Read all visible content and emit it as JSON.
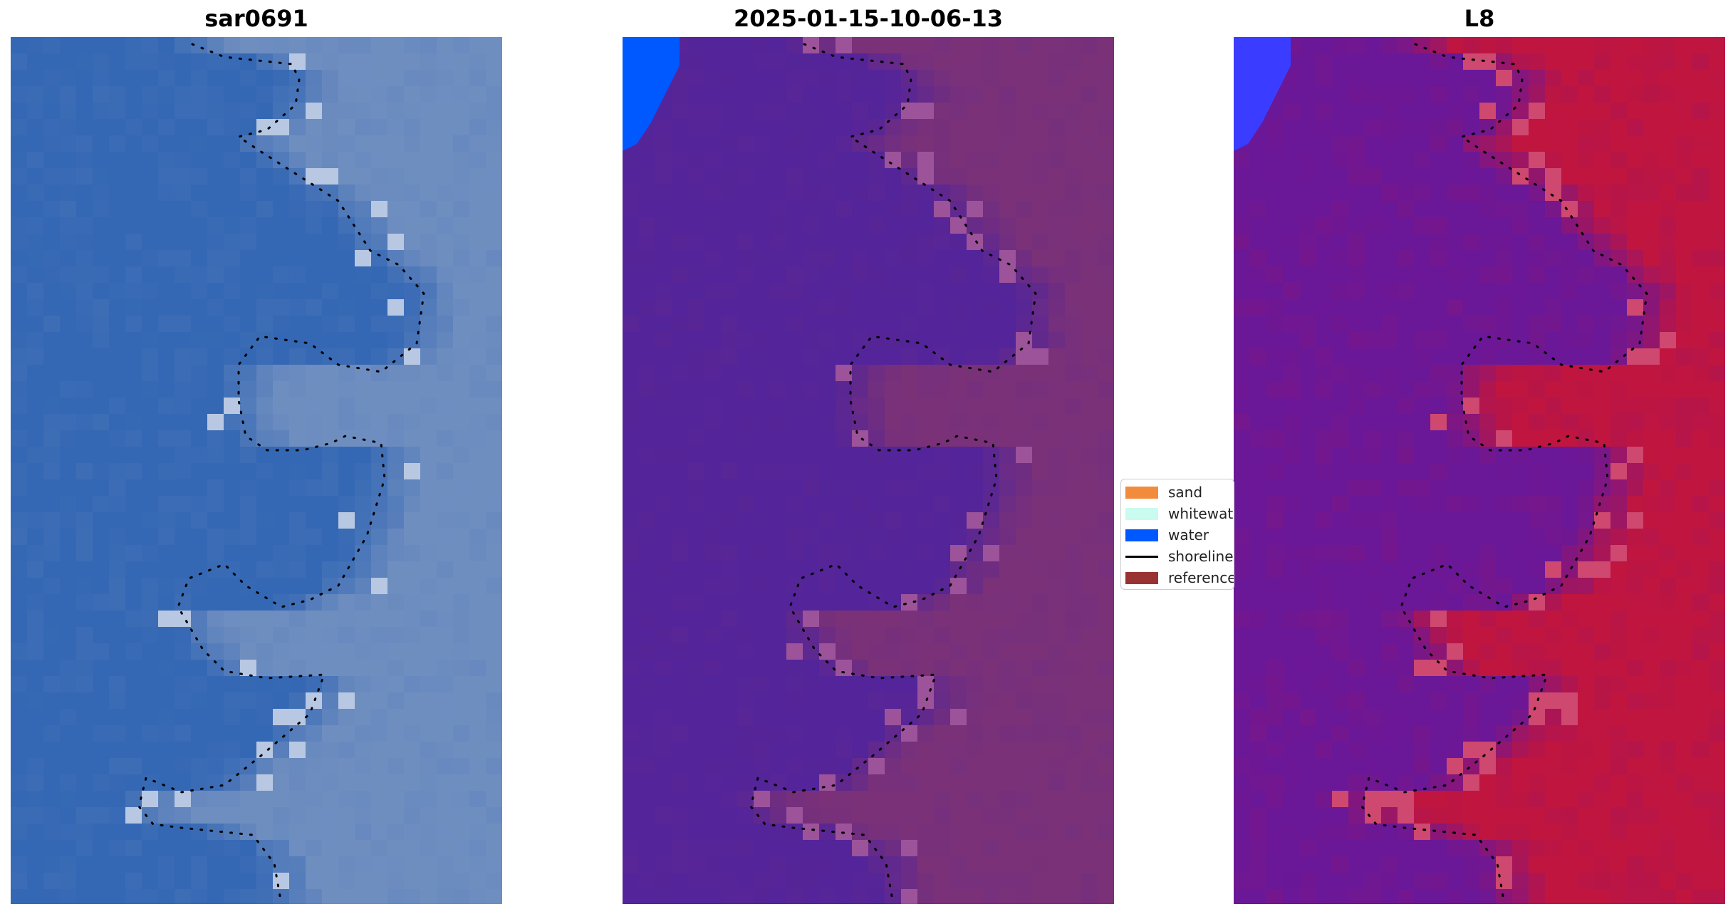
{
  "panels": [
    {
      "title": "sar0691",
      "base": "#3568b4",
      "land": "#6f8ec0",
      "bright": "#e8eef8",
      "water_patch": null
    },
    {
      "title": "2025-01-15-10-06-13",
      "base": "#53249a",
      "land": "#7a3178",
      "bright": "#b56ab0",
      "water_patch": "#0059ff"
    },
    {
      "title": "L8",
      "base": "#6a1798",
      "land": "#c0153f",
      "bright": "#d86a90",
      "water_patch": "#3a3dff"
    }
  ],
  "legend": {
    "items": [
      {
        "label": "sand",
        "color": "#f28c3c",
        "kind": "patch"
      },
      {
        "label": "whitewater",
        "color": "#c9fbef",
        "kind": "patch"
      },
      {
        "label": "water",
        "color": "#0059ff",
        "kind": "patch"
      },
      {
        "label": "shoreline",
        "color": "#000000",
        "kind": "line"
      },
      {
        "label": "reference",
        "color": "#993333",
        "kind": "patch"
      }
    ]
  }
}
